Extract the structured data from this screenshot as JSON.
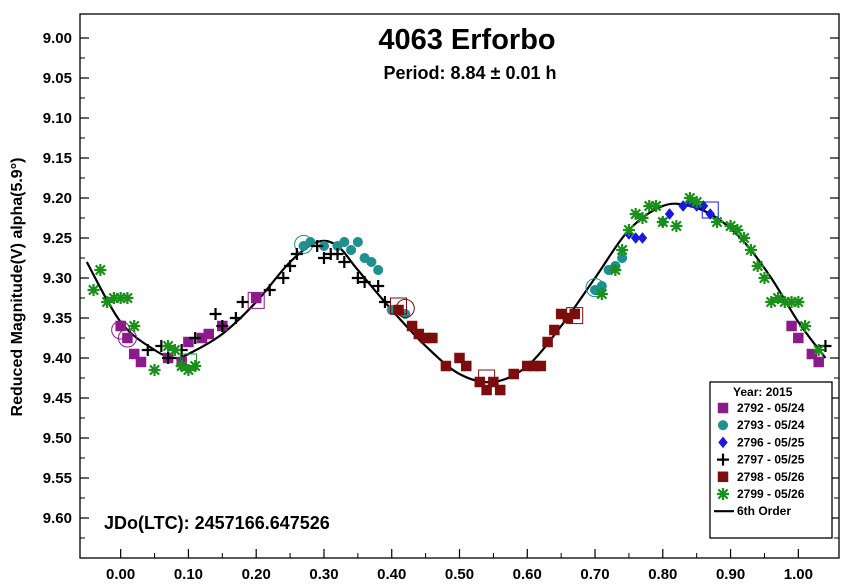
{
  "chart_data": {
    "type": "scatter",
    "title": "4063 Erforbo",
    "subtitle": "Period: 8.84 ± 0.01 h",
    "xlabel": "",
    "ylabel": "Reduced Magnitude(V) alpha(5.9°)",
    "annotation": "JDo(LTC): 2457166.647526",
    "xlim": [
      -0.06,
      1.06
    ],
    "ylim": [
      9.65,
      8.97
    ],
    "y_inverted": true,
    "x_ticks": [
      "0.00",
      "0.10",
      "0.20",
      "0.30",
      "0.40",
      "0.50",
      "0.60",
      "0.70",
      "0.80",
      "0.90",
      "1.00"
    ],
    "y_ticks": [
      "9.00",
      "9.05",
      "9.10",
      "9.15",
      "9.20",
      "9.25",
      "9.30",
      "9.35",
      "9.40",
      "9.45",
      "9.50",
      "9.55",
      "9.60"
    ],
    "grid": false,
    "legend": {
      "title": "Year: 2015",
      "placement": "bottom-right",
      "entries": [
        "2792 - 05/24",
        "2793 - 05/24",
        "2796 - 05/25",
        "2797 - 05/25",
        "2798 - 05/26",
        "2799 - 05/26",
        "6th Order"
      ]
    },
    "series": [
      {
        "name": "2792 - 05/24",
        "marker": "square",
        "color": "#8b1a8b",
        "points": [
          [
            0.0,
            9.36
          ],
          [
            0.01,
            9.375
          ],
          [
            0.02,
            9.395
          ],
          [
            0.03,
            9.405
          ],
          [
            0.07,
            9.4
          ],
          [
            0.09,
            9.405
          ],
          [
            0.1,
            9.38
          ],
          [
            0.12,
            9.375
          ],
          [
            0.13,
            9.37
          ],
          [
            0.15,
            9.36
          ],
          [
            0.2,
            9.325
          ],
          [
            0.99,
            9.36
          ],
          [
            1.0,
            9.375
          ],
          [
            1.02,
            9.395
          ],
          [
            1.03,
            9.405
          ]
        ],
        "circled": [
          [
            0.0,
            9.365
          ],
          [
            0.01,
            9.375
          ]
        ],
        "boxed": [
          [
            0.2,
            9.328
          ]
        ]
      },
      {
        "name": "2793 - 05/24",
        "marker": "circle",
        "color": "#1f8f8f",
        "points": [
          [
            0.27,
            9.26
          ],
          [
            0.28,
            9.255
          ],
          [
            0.3,
            9.26
          ],
          [
            0.32,
            9.26
          ],
          [
            0.33,
            9.255
          ],
          [
            0.34,
            9.265
          ],
          [
            0.35,
            9.255
          ],
          [
            0.36,
            9.275
          ],
          [
            0.37,
            9.28
          ],
          [
            0.38,
            9.29
          ],
          [
            0.4,
            9.34
          ],
          [
            0.42,
            9.345
          ],
          [
            0.43,
            9.36
          ],
          [
            0.7,
            9.315
          ],
          [
            0.71,
            9.31
          ],
          [
            0.72,
            9.29
          ],
          [
            0.73,
            9.285
          ],
          [
            0.74,
            9.275
          ]
        ],
        "circled": [
          [
            0.27,
            9.258
          ],
          [
            0.7,
            9.312
          ]
        ]
      },
      {
        "name": "2796 - 05/25",
        "marker": "diamond",
        "color": "#1a1adb",
        "points": [
          [
            0.75,
            9.245
          ],
          [
            0.76,
            9.25
          ],
          [
            0.77,
            9.25
          ],
          [
            0.8,
            9.23
          ],
          [
            0.81,
            9.22
          ],
          [
            0.83,
            9.21
          ],
          [
            0.84,
            9.205
          ],
          [
            0.85,
            9.21
          ],
          [
            0.86,
            9.21
          ],
          [
            0.87,
            9.22
          ]
        ],
        "boxed": [
          [
            0.87,
            9.215
          ]
        ]
      },
      {
        "name": "2797 - 05/25",
        "marker": "plus",
        "color": "#000000",
        "points": [
          [
            0.04,
            9.39
          ],
          [
            0.06,
            9.385
          ],
          [
            0.07,
            9.4
          ],
          [
            0.09,
            9.39
          ],
          [
            0.11,
            9.375
          ],
          [
            0.14,
            9.345
          ],
          [
            0.15,
            9.36
          ],
          [
            0.17,
            9.35
          ],
          [
            0.18,
            9.33
          ],
          [
            0.22,
            9.315
          ],
          [
            0.24,
            9.3
          ],
          [
            0.25,
            9.285
          ],
          [
            0.26,
            9.27
          ],
          [
            0.29,
            9.26
          ],
          [
            0.3,
            9.275
          ],
          [
            0.31,
            9.27
          ],
          [
            0.32,
            9.27
          ],
          [
            0.33,
            9.28
          ],
          [
            0.35,
            9.3
          ],
          [
            0.36,
            9.305
          ],
          [
            0.38,
            9.31
          ],
          [
            0.39,
            9.33
          ],
          [
            1.04,
            9.385
          ]
        ]
      },
      {
        "name": "2798 - 05/26",
        "marker": "square",
        "color": "#7a0d0d",
        "points": [
          [
            0.41,
            9.34
          ],
          [
            0.43,
            9.36
          ],
          [
            0.44,
            9.37
          ],
          [
            0.45,
            9.375
          ],
          [
            0.46,
            9.375
          ],
          [
            0.48,
            9.41
          ],
          [
            0.5,
            9.4
          ],
          [
            0.51,
            9.41
          ],
          [
            0.53,
            9.43
          ],
          [
            0.54,
            9.44
          ],
          [
            0.55,
            9.43
          ],
          [
            0.56,
            9.44
          ],
          [
            0.58,
            9.42
          ],
          [
            0.6,
            9.41
          ],
          [
            0.61,
            9.41
          ],
          [
            0.62,
            9.41
          ],
          [
            0.63,
            9.38
          ],
          [
            0.64,
            9.365
          ],
          [
            0.65,
            9.345
          ],
          [
            0.66,
            9.35
          ],
          [
            0.67,
            9.345
          ]
        ],
        "circled": [
          [
            0.42,
            9.338
          ]
        ],
        "boxed": [
          [
            0.41,
            9.335
          ],
          [
            0.54,
            9.425
          ],
          [
            0.67,
            9.347
          ]
        ]
      },
      {
        "name": "2799 - 05/26",
        "marker": "asterisk",
        "color": "#1a8f1a",
        "points": [
          [
            -0.04,
            9.315
          ],
          [
            -0.03,
            9.29
          ],
          [
            -0.02,
            9.33
          ],
          [
            -0.01,
            9.325
          ],
          [
            0.0,
            9.325
          ],
          [
            0.01,
            9.325
          ],
          [
            0.02,
            9.36
          ],
          [
            0.05,
            9.415
          ],
          [
            0.07,
            9.385
          ],
          [
            0.08,
            9.39
          ],
          [
            0.09,
            9.41
          ],
          [
            0.1,
            9.415
          ],
          [
            0.11,
            9.41
          ],
          [
            0.71,
            9.32
          ],
          [
            0.73,
            9.29
          ],
          [
            0.74,
            9.265
          ],
          [
            0.75,
            9.24
          ],
          [
            0.76,
            9.22
          ],
          [
            0.77,
            9.225
          ],
          [
            0.78,
            9.21
          ],
          [
            0.79,
            9.21
          ],
          [
            0.8,
            9.23
          ],
          [
            0.82,
            9.235
          ],
          [
            0.84,
            9.2
          ],
          [
            0.85,
            9.205
          ],
          [
            0.88,
            9.23
          ],
          [
            0.9,
            9.235
          ],
          [
            0.91,
            9.24
          ],
          [
            0.92,
            9.25
          ],
          [
            0.93,
            9.265
          ],
          [
            0.94,
            9.285
          ],
          [
            0.95,
            9.3
          ],
          [
            0.96,
            9.33
          ],
          [
            0.97,
            9.325
          ],
          [
            0.98,
            9.33
          ],
          [
            0.99,
            9.33
          ],
          [
            1.0,
            9.33
          ],
          [
            1.01,
            9.36
          ],
          [
            1.03,
            9.39
          ]
        ],
        "boxed": [
          [
            0.1,
            9.405
          ]
        ]
      }
    ],
    "fit_curve": {
      "name": "6th Order",
      "color": "#000000",
      "x": [
        -0.05,
        0.0,
        0.05,
        0.08,
        0.1,
        0.15,
        0.2,
        0.25,
        0.29,
        0.32,
        0.35,
        0.4,
        0.45,
        0.5,
        0.55,
        0.6,
        0.65,
        0.7,
        0.75,
        0.8,
        0.84,
        0.88,
        0.92,
        0.96,
        1.0,
        1.04
      ],
      "y": [
        9.28,
        9.355,
        9.39,
        9.4,
        9.395,
        9.37,
        9.33,
        9.28,
        9.255,
        9.26,
        9.29,
        9.34,
        9.385,
        9.42,
        9.43,
        9.41,
        9.36,
        9.3,
        9.24,
        9.21,
        9.21,
        9.225,
        9.255,
        9.3,
        9.355,
        9.4
      ]
    }
  }
}
